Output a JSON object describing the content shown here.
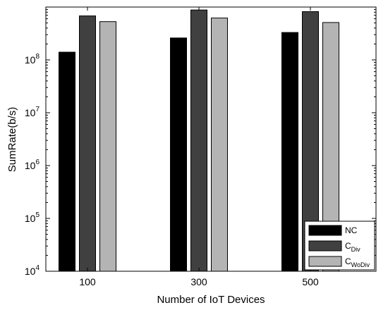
{
  "chart_data": {
    "type": "bar",
    "xlabel": "Number of IoT Devices",
    "ylabel": "SumRate(b/s)",
    "categories": [
      "100",
      "300",
      "500"
    ],
    "y_scale": "log",
    "ylim": [
      10000,
      1000000000
    ],
    "y_tick_base": "10",
    "y_tick_exponents": [
      "4",
      "5",
      "6",
      "7",
      "8"
    ],
    "grid": false,
    "legend_position": "bottom-right",
    "series": [
      {
        "name": "NC",
        "name_sub": "",
        "color": "#000000",
        "values": [
          140000000,
          260000000,
          330000000
        ]
      },
      {
        "name": "C",
        "name_sub": "Div",
        "color": "#404040",
        "values": [
          680000000,
          880000000,
          820000000
        ]
      },
      {
        "name": "C",
        "name_sub": "WoDiv",
        "color": "#b4b4b4",
        "values": [
          530000000,
          620000000,
          510000000
        ]
      }
    ]
  }
}
